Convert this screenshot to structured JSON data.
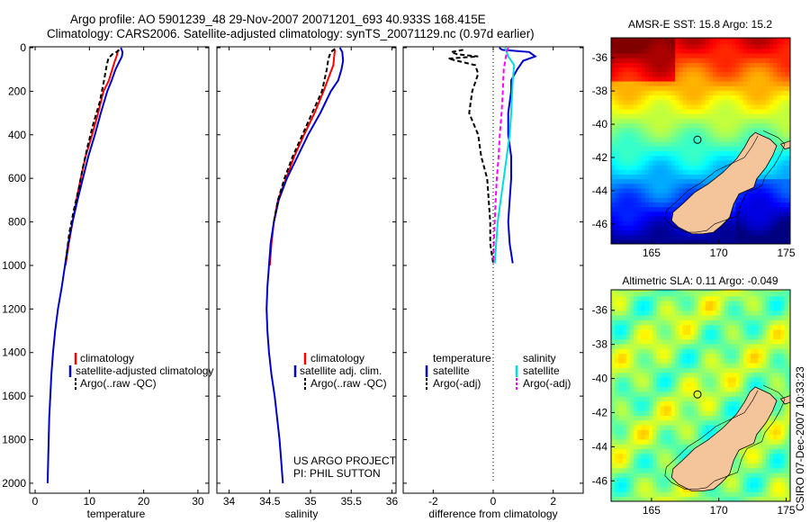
{
  "header": {
    "line1": "Argo profile: AO 5901239_48 29-Nov-2007 20071201_693 40.933S 168.415E",
    "line2": "Climatology: CARS2006. Satellite-adjusted climatology: synTS_20071129.nc (0.97d earlier)"
  },
  "footer": {
    "project": "US ARGO PROJECT",
    "pi": "PI: PHIL SUTTON",
    "stamp": "CSIRO 07-Dec-2007 10:33:23"
  },
  "colors": {
    "climatology": "#ff0000",
    "satellite": "#0000cc",
    "argo": "#000000",
    "sal_satellite": "#00dddd",
    "sal_argo": "#ff00ff",
    "land": "#f4c49a"
  },
  "chart_data": [
    {
      "type": "line",
      "name": "temperature-panel",
      "xlabel": "temperature",
      "ylabel": "",
      "xlim": [
        -1,
        32
      ],
      "ylim": [
        2050,
        0
      ],
      "xticks": [
        0,
        10,
        20,
        30
      ],
      "yticks": [
        0,
        200,
        400,
        600,
        800,
        1000,
        1200,
        1400,
        1600,
        1800,
        2000
      ],
      "legend": {
        "placement": "bottom-right",
        "entries": [
          "climatology",
          "satellite-adjusted climatology",
          "Argo(..raw -QC)"
        ]
      },
      "series": [
        {
          "name": "climatology",
          "color": "#ff0000",
          "dash": false,
          "points": [
            [
              15.3,
              10
            ],
            [
              15.2,
              20
            ],
            [
              15.0,
              40
            ],
            [
              14.7,
              60
            ],
            [
              14.2,
              100
            ],
            [
              13.6,
              150
            ],
            [
              12.6,
              200
            ],
            [
              11.6,
              300
            ],
            [
              10.5,
              400
            ],
            [
              9.3,
              500
            ],
            [
              8.4,
              600
            ],
            [
              7.6,
              700
            ],
            [
              6.9,
              800
            ],
            [
              6.2,
              900
            ],
            [
              5.6,
              1000
            ]
          ]
        },
        {
          "name": "satellite-adjusted climatology",
          "color": "#0000cc",
          "dash": false,
          "points": [
            [
              15.8,
              0
            ],
            [
              16.1,
              20
            ],
            [
              16.0,
              40
            ],
            [
              15.6,
              60
            ],
            [
              14.8,
              100
            ],
            [
              14.1,
              150
            ],
            [
              13.3,
              200
            ],
            [
              12.1,
              300
            ],
            [
              11.0,
              400
            ],
            [
              9.8,
              500
            ],
            [
              8.8,
              600
            ],
            [
              7.8,
              700
            ],
            [
              6.9,
              800
            ],
            [
              6.1,
              900
            ],
            [
              5.5,
              1000
            ],
            [
              4.9,
              1100
            ],
            [
              4.2,
              1200
            ],
            [
              3.7,
              1300
            ],
            [
              3.3,
              1400
            ],
            [
              3.0,
              1500
            ],
            [
              2.8,
              1600
            ],
            [
              2.6,
              1700
            ],
            [
              2.5,
              1800
            ],
            [
              2.4,
              1900
            ],
            [
              2.3,
              2000
            ]
          ]
        },
        {
          "name": "Argo(..raw -QC)",
          "color": "#000000",
          "dash": true,
          "points": [
            [
              15.5,
              10
            ],
            [
              15.0,
              20
            ],
            [
              14.2,
              30
            ],
            [
              13.5,
              50
            ],
            [
              13.2,
              80
            ],
            [
              12.7,
              150
            ],
            [
              11.9,
              250
            ],
            [
              10.7,
              350
            ],
            [
              9.7,
              450
            ],
            [
              8.8,
              550
            ],
            [
              8.0,
              650
            ],
            [
              7.1,
              750
            ],
            [
              6.3,
              850
            ],
            [
              5.8,
              950
            ],
            [
              5.6,
              990
            ]
          ]
        }
      ]
    },
    {
      "type": "line",
      "name": "salinity-panel",
      "xlabel": "salinity",
      "ylabel": "",
      "xlim": [
        33.85,
        36.05
      ],
      "ylim": [
        2050,
        0
      ],
      "xticks": [
        34,
        34.5,
        35,
        35.5,
        36
      ],
      "xtick_labels": [
        "34",
        "34.5",
        "35",
        "35.5",
        "36"
      ],
      "legend": {
        "placement": "bottom-right",
        "entries": [
          "climatology",
          "satellite adj. clim.",
          "Argo(..raw -QC)"
        ]
      },
      "series": [
        {
          "name": "climatology",
          "color": "#ff0000",
          "dash": false,
          "points": [
            [
              35.3,
              10
            ],
            [
              35.29,
              40
            ],
            [
              35.28,
              80
            ],
            [
              35.24,
              120
            ],
            [
              35.16,
              200
            ],
            [
              35.05,
              300
            ],
            [
              34.92,
              400
            ],
            [
              34.8,
              500
            ],
            [
              34.7,
              600
            ],
            [
              34.6,
              700
            ],
            [
              34.55,
              800
            ],
            [
              34.52,
              900
            ],
            [
              34.5,
              1000
            ]
          ]
        },
        {
          "name": "satellite adj. clim.",
          "color": "#0000cc",
          "dash": false,
          "points": [
            [
              35.36,
              0
            ],
            [
              35.39,
              20
            ],
            [
              35.4,
              60
            ],
            [
              35.38,
              100
            ],
            [
              35.34,
              150
            ],
            [
              35.25,
              200
            ],
            [
              35.12,
              300
            ],
            [
              34.97,
              400
            ],
            [
              34.84,
              500
            ],
            [
              34.71,
              600
            ],
            [
              34.61,
              700
            ],
            [
              34.55,
              800
            ],
            [
              34.51,
              900
            ],
            [
              34.49,
              1000
            ],
            [
              34.47,
              1100
            ],
            [
              34.46,
              1200
            ],
            [
              34.47,
              1300
            ],
            [
              34.49,
              1400
            ],
            [
              34.52,
              1500
            ],
            [
              34.56,
              1600
            ],
            [
              34.59,
              1700
            ],
            [
              34.62,
              1800
            ],
            [
              34.64,
              1900
            ],
            [
              34.66,
              2000
            ]
          ]
        },
        {
          "name": "Argo(..raw -QC)",
          "color": "#000000",
          "dash": true,
          "points": [
            [
              35.3,
              5
            ],
            [
              35.25,
              20
            ],
            [
              35.22,
              50
            ],
            [
              35.2,
              100
            ],
            [
              35.14,
              200
            ],
            [
              35.02,
              300
            ],
            [
              34.9,
              400
            ],
            [
              34.78,
              500
            ],
            [
              34.68,
              600
            ],
            [
              34.6,
              700
            ],
            [
              34.55,
              800
            ]
          ]
        }
      ]
    },
    {
      "type": "line",
      "name": "difference-panel",
      "xlabel": "difference from climatology",
      "ylabel": "",
      "xlim": [
        -3,
        3
      ],
      "ylim": [
        2050,
        0
      ],
      "xticks": [
        -2,
        0,
        2
      ],
      "legend": {
        "placement": "bottom",
        "entries": [
          "temperature",
          "satellite",
          "Argo(-adj)",
          "salinity",
          "satellite",
          "Argo(-adj)"
        ]
      },
      "series": [
        {
          "name": "temperature satellite",
          "color": "#0000cc",
          "dash": false,
          "points": [
            [
              0.2,
              0
            ],
            [
              0.3,
              10
            ],
            [
              1.2,
              20
            ],
            [
              1.4,
              40
            ],
            [
              1.0,
              60
            ],
            [
              0.8,
              100
            ],
            [
              0.6,
              150
            ],
            [
              0.6,
              200
            ],
            [
              0.5,
              300
            ],
            [
              0.5,
              400
            ],
            [
              0.6,
              500
            ],
            [
              0.6,
              600
            ],
            [
              0.55,
              700
            ],
            [
              0.5,
              800
            ],
            [
              0.55,
              900
            ],
            [
              0.65,
              990
            ]
          ]
        },
        {
          "name": "temperature Argo(-adj)",
          "color": "#000000",
          "dash": true,
          "points": [
            [
              -1.0,
              10
            ],
            [
              -1.4,
              20
            ],
            [
              -1.2,
              30
            ],
            [
              -0.5,
              40
            ],
            [
              -1.5,
              50
            ],
            [
              -0.6,
              80
            ],
            [
              -0.5,
              120
            ],
            [
              -0.7,
              200
            ],
            [
              -0.8,
              300
            ],
            [
              -0.5,
              400
            ],
            [
              -0.4,
              500
            ],
            [
              -0.2,
              600
            ],
            [
              -0.15,
              700
            ],
            [
              -0.1,
              800
            ],
            [
              -0.1,
              900
            ],
            [
              0,
              990
            ]
          ]
        },
        {
          "name": "salinity satellite",
          "color": "#00dddd",
          "dash": false,
          "points": [
            [
              0.4,
              0
            ],
            [
              0.5,
              40
            ],
            [
              0.7,
              80
            ],
            [
              0.65,
              150
            ],
            [
              0.6,
              300
            ],
            [
              0.55,
              400
            ],
            [
              0.45,
              500
            ],
            [
              0.35,
              600
            ],
            [
              0.25,
              700
            ],
            [
              0.15,
              800
            ],
            [
              0.1,
              900
            ],
            [
              0.05,
              990
            ]
          ]
        },
        {
          "name": "salinity Argo(-adj)",
          "color": "#ff00ff",
          "dash": true,
          "points": [
            [
              0.5,
              0
            ],
            [
              0.45,
              20
            ],
            [
              0.4,
              60
            ],
            [
              0.35,
              100
            ],
            [
              0.32,
              200
            ],
            [
              0.28,
              300
            ],
            [
              0.22,
              400
            ],
            [
              0.18,
              500
            ],
            [
              0.12,
              600
            ],
            [
              0.08,
              700
            ],
            [
              0.05,
              800
            ],
            [
              0.02,
              900
            ],
            [
              0,
              990
            ]
          ]
        },
        {
          "name": "zero",
          "color": "#000000",
          "dash": "dotted",
          "points": [
            [
              0,
              0
            ],
            [
              0,
              2000
            ]
          ]
        }
      ]
    },
    {
      "type": "heatmap",
      "name": "amsre-sst-map",
      "title": "AMSR-E SST: 15.8 Argo: 15.2",
      "xlim": [
        162,
        175.3
      ],
      "ylim": [
        -47.2,
        -34.8
      ],
      "xticks": [
        165,
        170,
        175
      ],
      "yticks": [
        -36,
        -38,
        -40,
        -42,
        -44,
        -46
      ],
      "colormap": "jet",
      "marker": {
        "lon": 168.415,
        "lat": -40.933
      }
    },
    {
      "type": "heatmap",
      "name": "altimetric-sla-map",
      "title": "Altimetric SLA: 0.11 Argo: -0.049",
      "xlim": [
        162,
        175.3
      ],
      "ylim": [
        -47.2,
        -34.8
      ],
      "xticks": [
        165,
        170,
        175
      ],
      "yticks": [
        -36,
        -38,
        -40,
        -42,
        -44,
        -46
      ],
      "colormap": "jet",
      "marker": {
        "lon": 168.415,
        "lat": -40.933
      }
    }
  ]
}
